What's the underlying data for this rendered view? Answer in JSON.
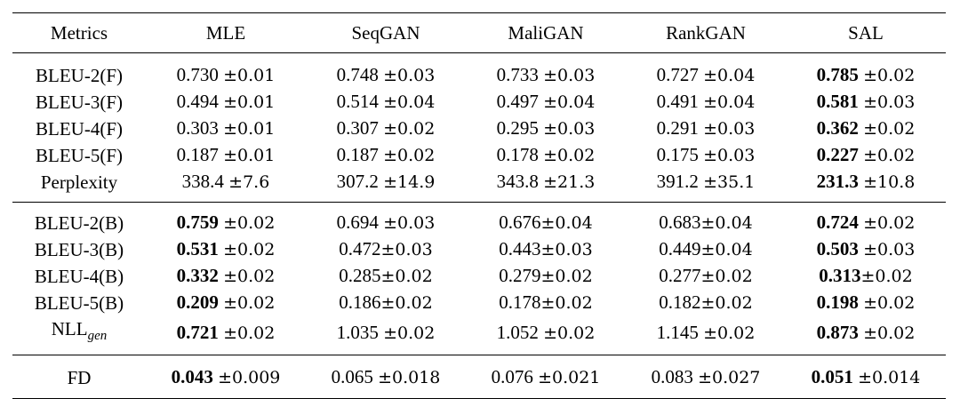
{
  "header": [
    "Metrics",
    "MLE",
    "SeqGAN",
    "MaliGAN",
    "RankGAN",
    "SAL"
  ],
  "sections": [
    {
      "rows": [
        {
          "metric": "BLEU-2(F)",
          "cells": [
            {
              "v": "0.730",
              "pm": "±0.01",
              "bold": false,
              "sep": " "
            },
            {
              "v": "0.748",
              "pm": "±0.03",
              "bold": false,
              "sep": " "
            },
            {
              "v": "0.733",
              "pm": "±0.03",
              "bold": false,
              "sep": " "
            },
            {
              "v": "0.727",
              "pm": "±0.04",
              "bold": false,
              "sep": " "
            },
            {
              "v": "0.785",
              "pm": "±0.02",
              "bold": true,
              "sep": " "
            }
          ]
        },
        {
          "metric": "BLEU-3(F)",
          "cells": [
            {
              "v": "0.494",
              "pm": "±0.01",
              "bold": false,
              "sep": " "
            },
            {
              "v": "0.514",
              "pm": "±0.04",
              "bold": false,
              "sep": " "
            },
            {
              "v": "0.497",
              "pm": "±0.04",
              "bold": false,
              "sep": " "
            },
            {
              "v": "0.491",
              "pm": "±0.04",
              "bold": false,
              "sep": " "
            },
            {
              "v": "0.581",
              "pm": "±0.03",
              "bold": true,
              "sep": " "
            }
          ]
        },
        {
          "metric": "BLEU-4(F)",
          "cells": [
            {
              "v": "0.303",
              "pm": "±0.01",
              "bold": false,
              "sep": " "
            },
            {
              "v": "0.307",
              "pm": "±0.02",
              "bold": false,
              "sep": " "
            },
            {
              "v": "0.295",
              "pm": "±0.03",
              "bold": false,
              "sep": " "
            },
            {
              "v": "0.291",
              "pm": "±0.03",
              "bold": false,
              "sep": " "
            },
            {
              "v": "0.362",
              "pm": "±0.02",
              "bold": true,
              "sep": " "
            }
          ]
        },
        {
          "metric": "BLEU-5(F)",
          "cells": [
            {
              "v": "0.187",
              "pm": "±0.01",
              "bold": false,
              "sep": " "
            },
            {
              "v": "0.187",
              "pm": "±0.02",
              "bold": false,
              "sep": " "
            },
            {
              "v": "0.178",
              "pm": "±0.02",
              "bold": false,
              "sep": " "
            },
            {
              "v": "0.175",
              "pm": "±0.03",
              "bold": false,
              "sep": " "
            },
            {
              "v": "0.227",
              "pm": "±0.02",
              "bold": true,
              "sep": " "
            }
          ]
        },
        {
          "metric": "Perplexity",
          "cells": [
            {
              "v": "338.4",
              "pm": "±7.6",
              "bold": false,
              "sep": " "
            },
            {
              "v": "307.2",
              "pm": "±14.9",
              "bold": false,
              "sep": " "
            },
            {
              "v": "343.8",
              "pm": "±21.3",
              "bold": false,
              "sep": " "
            },
            {
              "v": "391.2",
              "pm": "±35.1",
              "bold": false,
              "sep": " "
            },
            {
              "v": "231.3",
              "pm": "±10.8",
              "bold": true,
              "sep": " "
            }
          ]
        }
      ]
    },
    {
      "rows": [
        {
          "metric": "BLEU-2(B)",
          "cells": [
            {
              "v": "0.759",
              "pm": "±0.02",
              "bold": true,
              "sep": " "
            },
            {
              "v": "0.694",
              "pm": "±0.03",
              "bold": false,
              "sep": " "
            },
            {
              "v": "0.676",
              "pm": "±0.04",
              "bold": false,
              "sep": ""
            },
            {
              "v": "0.683",
              "pm": "±0.04",
              "bold": false,
              "sep": ""
            },
            {
              "v": "0.724",
              "pm": "±0.02",
              "bold": true,
              "sep": " "
            }
          ]
        },
        {
          "metric": "BLEU-3(B)",
          "cells": [
            {
              "v": "0.531",
              "pm": "±0.02",
              "bold": true,
              "sep": " "
            },
            {
              "v": "0.472",
              "pm": "±0.03",
              "bold": false,
              "sep": ""
            },
            {
              "v": "0.443",
              "pm": "±0.03",
              "bold": false,
              "sep": ""
            },
            {
              "v": "0.449",
              "pm": "±0.04",
              "bold": false,
              "sep": ""
            },
            {
              "v": "0.503",
              "pm": "±0.03",
              "bold": true,
              "sep": " "
            }
          ]
        },
        {
          "metric": "BLEU-4(B)",
          "cells": [
            {
              "v": "0.332",
              "pm": "±0.02",
              "bold": true,
              "sep": " "
            },
            {
              "v": "0.285",
              "pm": "±0.02",
              "bold": false,
              "sep": ""
            },
            {
              "v": "0.279",
              "pm": "±0.02",
              "bold": false,
              "sep": ""
            },
            {
              "v": "0.277",
              "pm": "±0.02",
              "bold": false,
              "sep": ""
            },
            {
              "v": "0.313",
              "pm": "±0.02",
              "bold": true,
              "sep": ""
            }
          ]
        },
        {
          "metric": "BLEU-5(B)",
          "cells": [
            {
              "v": "0.209",
              "pm": "±0.02",
              "bold": true,
              "sep": " "
            },
            {
              "v": "0.186",
              "pm": "±0.02",
              "bold": false,
              "sep": ""
            },
            {
              "v": "0.178",
              "pm": "±0.02",
              "bold": false,
              "sep": ""
            },
            {
              "v": "0.182",
              "pm": "±0.02",
              "bold": false,
              "sep": ""
            },
            {
              "v": "0.198",
              "pm": "±0.02",
              "bold": true,
              "sep": " "
            }
          ]
        },
        {
          "metric": "NLL",
          "metric_sub": "gen",
          "cells": [
            {
              "v": "0.721",
              "pm": "±0.02",
              "bold": true,
              "sep": " "
            },
            {
              "v": "1.035",
              "pm": "±0.02",
              "bold": false,
              "sep": " "
            },
            {
              "v": "1.052",
              "pm": "±0.02",
              "bold": false,
              "sep": " "
            },
            {
              "v": "1.145",
              "pm": "±0.02",
              "bold": false,
              "sep": " "
            },
            {
              "v": "0.873",
              "pm": "±0.02",
              "bold": true,
              "sep": " "
            }
          ]
        }
      ]
    },
    {
      "rows": [
        {
          "metric": "FD",
          "cells": [
            {
              "v": "0.043",
              "pm": "±0.009",
              "bold": true,
              "sep": " "
            },
            {
              "v": "0.065",
              "pm": "±0.018",
              "bold": false,
              "sep": " "
            },
            {
              "v": "0.076",
              "pm": "±0.021",
              "bold": false,
              "sep": " "
            },
            {
              "v": "0.083",
              "pm": "±0.027",
              "bold": false,
              "sep": " "
            },
            {
              "v": "0.051",
              "pm": "±0.014",
              "bold": true,
              "sep": " "
            }
          ]
        }
      ]
    }
  ]
}
